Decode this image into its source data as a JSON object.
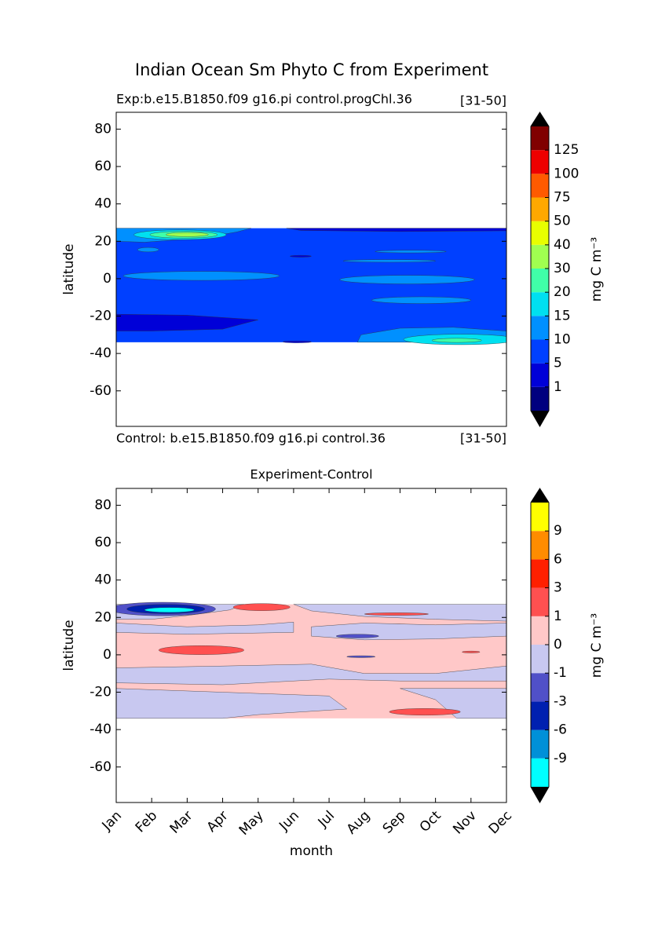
{
  "title": "Indian Ocean Sm Phyto C from Experiment",
  "chart_data": [
    {
      "type": "contour",
      "title_left": "Exp:b.e15.B1850.f09 g16.pi control.progChl.36",
      "title_right": "[31-50]",
      "ylabel": "latitude",
      "ylim": [
        -79,
        89
      ],
      "yticks": [
        -60,
        -40,
        -20,
        0,
        20,
        40,
        60,
        80
      ],
      "xlim": [
        0,
        11
      ],
      "colorbar": {
        "label": "mg C m⁻³",
        "extend": "both",
        "levels": [
          1,
          5,
          10,
          15,
          20,
          30,
          40,
          50,
          75,
          100,
          125
        ],
        "colors": [
          "#00007f",
          "#0000d8",
          "#0040ff",
          "#0090ff",
          "#00e0f0",
          "#40ffa8",
          "#a0ff50",
          "#e8ff00",
          "#ffa800",
          "#ff5a00",
          "#ee0000",
          "#800000"
        ]
      }
    },
    {
      "type": "contour",
      "caption_left": "Control: b.e15.B1850.f09 g16.pi control.36",
      "caption_right": "[31-50]",
      "title": "Experiment-Control",
      "ylabel": "latitude",
      "xlabel": "month",
      "categories": [
        "Jan",
        "Feb",
        "Mar",
        "Apr",
        "May",
        "Jun",
        "Jul",
        "Aug",
        "Sep",
        "Oct",
        "Nov",
        "Dec"
      ],
      "ylim": [
        -79,
        89
      ],
      "yticks": [
        -60,
        -40,
        -20,
        0,
        20,
        40,
        60,
        80
      ],
      "xlim": [
        0,
        11
      ],
      "colorbar": {
        "label": "mg C m⁻³",
        "extend": "both",
        "levels": [
          -9,
          -6,
          -3,
          -1,
          0,
          1,
          3,
          6,
          9
        ],
        "colors": [
          "#00ffff",
          "#0090d8",
          "#0020b0",
          "#5050c8",
          "#c8c8f0",
          "#ffc8c8",
          "#ff5050",
          "#ff2000",
          "#ff8c00",
          "#ffff00"
        ]
      }
    }
  ]
}
